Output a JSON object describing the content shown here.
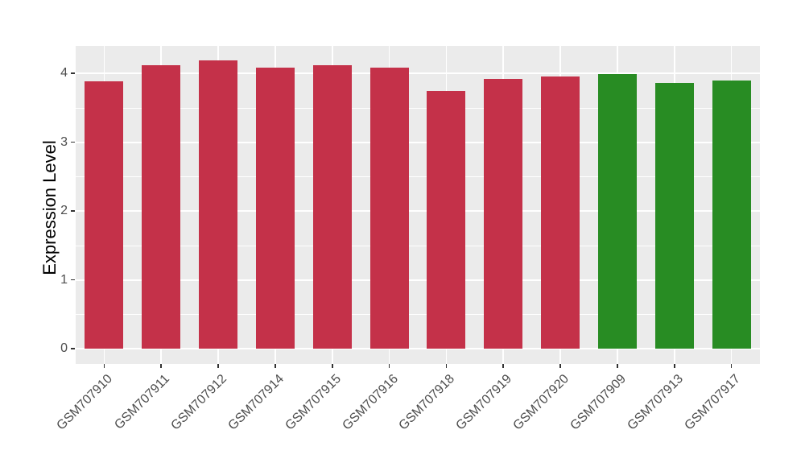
{
  "chart_data": {
    "type": "bar",
    "title": "",
    "xlabel": "",
    "ylabel": "Expression Level",
    "categories": [
      "GSM707910",
      "GSM707911",
      "GSM707912",
      "GSM707914",
      "GSM707915",
      "GSM707916",
      "GSM707918",
      "GSM707919",
      "GSM707920",
      "GSM707909",
      "GSM707913",
      "GSM707917"
    ],
    "values": [
      3.88,
      4.12,
      4.19,
      4.08,
      4.12,
      4.09,
      3.75,
      3.92,
      3.95,
      3.99,
      3.86,
      3.9
    ],
    "bar_colors": [
      "#C43149",
      "#C43149",
      "#C43149",
      "#C43149",
      "#C43149",
      "#C43149",
      "#C43149",
      "#C43149",
      "#C43149",
      "#288C23",
      "#288C23",
      "#288C23"
    ],
    "group_colors": {
      "red_group": "#C43149",
      "green_group": "#288C23"
    },
    "ylim": [
      -0.22,
      4.4
    ],
    "yticks": [
      0,
      1,
      2,
      3,
      4
    ],
    "ytick_labels": [
      "0",
      "1",
      "2",
      "3",
      "4"
    ],
    "minor_gridlines": [
      0.5,
      1.5,
      2.5,
      3.5
    ],
    "grid": "on",
    "legend": "none",
    "plot_background": "#EBEBEB",
    "gridline_color": "#FFFFFF",
    "bar_width_fraction": 0.68
  }
}
